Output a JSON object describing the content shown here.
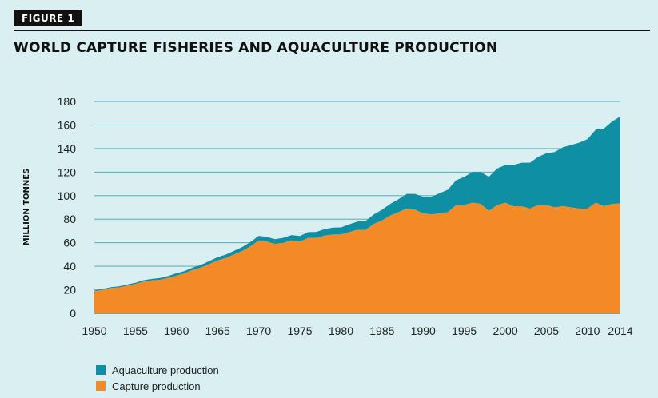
{
  "figure_label": "FIGURE 1",
  "chart_data": {
    "type": "area",
    "title": "WORLD CAPTURE FISHERIES AND AQUACULTURE PRODUCTION",
    "ylabel": "MILLION TONNES",
    "xlabel": "",
    "ylim": [
      0,
      180
    ],
    "xlim": [
      1950,
      2014
    ],
    "y_ticks": [
      "0",
      "20",
      "40",
      "60",
      "80",
      "100",
      "120",
      "140",
      "160",
      "180"
    ],
    "x_ticks": [
      "1950",
      "1955",
      "1960",
      "1965",
      "1970",
      "1975",
      "1980",
      "1985",
      "1990",
      "1995",
      "2000",
      "2005",
      "2010",
      "2014"
    ],
    "grid": true,
    "stacked": true,
    "legend_position": "bottom-left",
    "x": [
      1950,
      1951,
      1952,
      1953,
      1954,
      1955,
      1956,
      1957,
      1958,
      1959,
      1960,
      1961,
      1962,
      1963,
      1964,
      1965,
      1966,
      1967,
      1968,
      1969,
      1970,
      1971,
      1972,
      1973,
      1974,
      1975,
      1976,
      1977,
      1978,
      1979,
      1980,
      1981,
      1982,
      1983,
      1984,
      1985,
      1986,
      1987,
      1988,
      1989,
      1990,
      1991,
      1992,
      1993,
      1994,
      1995,
      1996,
      1997,
      1998,
      1999,
      2000,
      2001,
      2002,
      2003,
      2004,
      2005,
      2006,
      2007,
      2008,
      2009,
      2010,
      2011,
      2012,
      2013,
      2014
    ],
    "series": [
      {
        "name": "Capture production",
        "color": "#f38a25",
        "values": [
          18.7,
          20,
          21.5,
          22,
          23.5,
          25,
          27,
          28,
          28.5,
          30,
          32,
          34,
          37,
          39,
          42,
          45,
          47,
          50,
          53,
          57,
          62,
          61,
          59,
          60,
          62,
          61,
          64,
          64,
          66,
          67,
          67,
          69,
          71,
          71,
          76,
          79,
          83,
          86,
          89,
          88,
          85,
          84,
          85,
          86,
          92,
          92,
          94,
          93,
          87,
          92,
          94,
          91,
          91,
          89,
          92,
          92,
          90,
          91,
          90,
          89,
          89,
          94,
          91,
          93,
          93.4
        ]
      },
      {
        "name": "Aquaculture production",
        "color": "#0e8fa3",
        "values": [
          0.6,
          0.7,
          0.8,
          0.9,
          1,
          1,
          1.2,
          1.3,
          1.5,
          1.7,
          2,
          2,
          2,
          2.2,
          2.5,
          2.7,
          2.9,
          3.1,
          3.4,
          3.6,
          3.8,
          3.9,
          4,
          4.2,
          4.5,
          4.7,
          5,
          5.2,
          5.5,
          5.8,
          6,
          6.5,
          7,
          7.5,
          8,
          9,
          10,
          11,
          12.5,
          13.5,
          14,
          15,
          17,
          19,
          21,
          24,
          26,
          27,
          29,
          31,
          32,
          35,
          37,
          39,
          41,
          44,
          47,
          50,
          53,
          56,
          59,
          62,
          66,
          70,
          73.8
        ]
      }
    ]
  }
}
